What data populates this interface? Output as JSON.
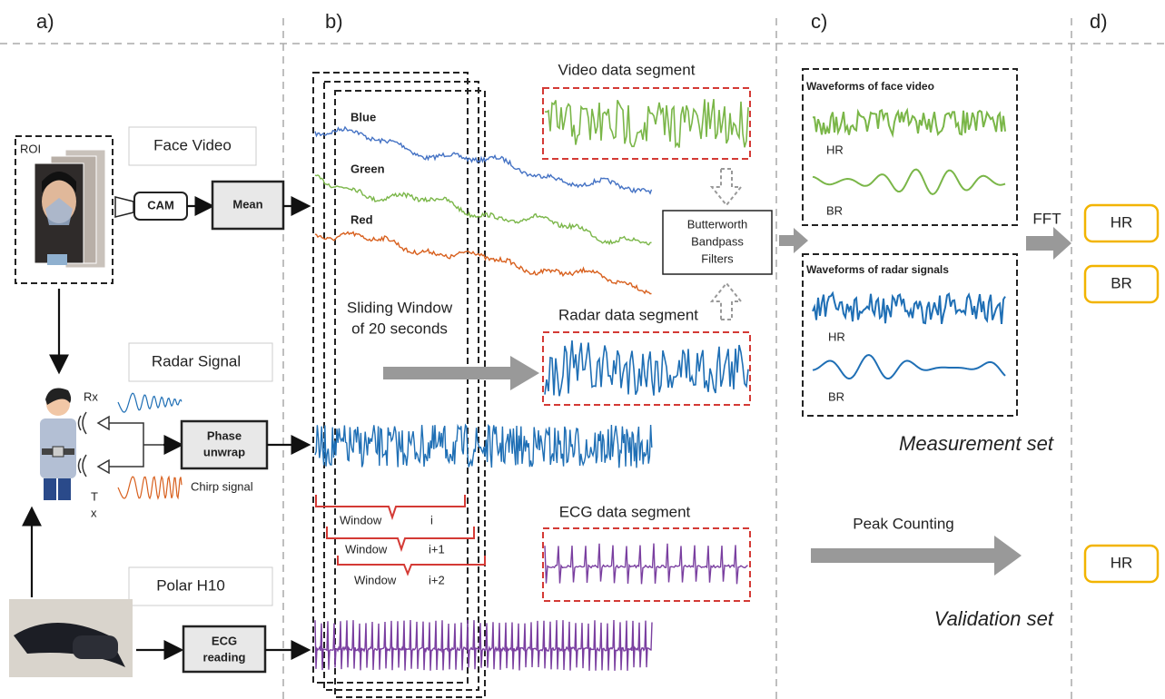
{
  "panels": [
    "a)",
    "b)",
    "c)",
    "d)"
  ],
  "acquisition": {
    "roi": "ROI",
    "face_video": "Face Video",
    "cam": "CAM",
    "mean": "Mean",
    "radar_signal": "Radar Signal",
    "rx": "Rx",
    "tx": [
      "T",
      "x"
    ],
    "chirp": "Chirp signal",
    "phase_unwrap": [
      "Phase",
      "unwrap"
    ],
    "polar": "Polar H10",
    "ecg_reading": [
      "ECG",
      "reading"
    ]
  },
  "segmentation": {
    "channels": [
      "Blue",
      "Green",
      "Red"
    ],
    "sliding_window": [
      "Sliding Window",
      "of 20 seconds"
    ],
    "video_segment": "Video data segment",
    "radar_segment": "Radar data segment",
    "ecg_segment": "ECG data segment",
    "filter": [
      "Butterworth",
      "Bandpass",
      "Filters"
    ],
    "windows": [
      {
        "word": "Window",
        "index": "i"
      },
      {
        "word": "Window",
        "index": "i+1"
      },
      {
        "word": "Window",
        "index": "i+2"
      }
    ]
  },
  "processing": {
    "face_title": "Waveforms of face video",
    "face_hr": "HR",
    "face_br": "BR",
    "radar_title": "Waveforms of radar signals",
    "radar_hr": "HR",
    "radar_br": "BR",
    "measurement": "Measurement set",
    "fft": "FFT",
    "peak": "Peak Counting",
    "validation": "Validation set"
  },
  "outputs": [
    "HR",
    "BR",
    "HR"
  ]
}
